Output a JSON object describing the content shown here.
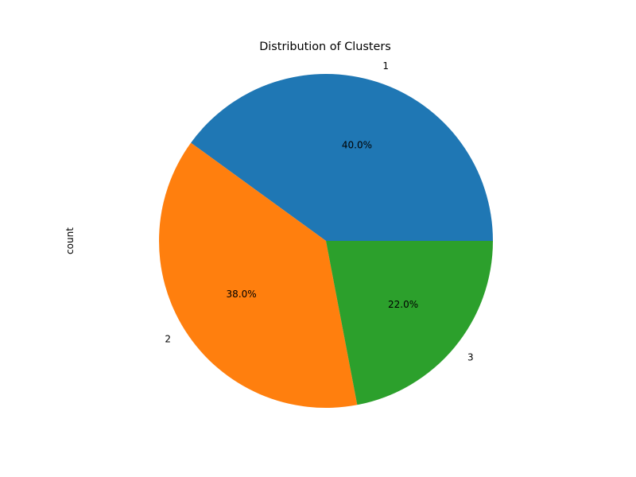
{
  "chart_data": {
    "type": "pie",
    "title": "Distribution of Clusters",
    "ylabel": "count",
    "slices": [
      {
        "label": "1",
        "percent": 40.0,
        "percent_label": "40.0%",
        "color": "#1f77b4"
      },
      {
        "label": "2",
        "percent": 38.0,
        "percent_label": "38.0%",
        "color": "#ff7f0e"
      },
      {
        "label": "3",
        "percent": 22.0,
        "percent_label": "22.0%",
        "color": "#2ca02c"
      }
    ],
    "start_angle_deg": 0,
    "direction": "counterclockwise"
  }
}
